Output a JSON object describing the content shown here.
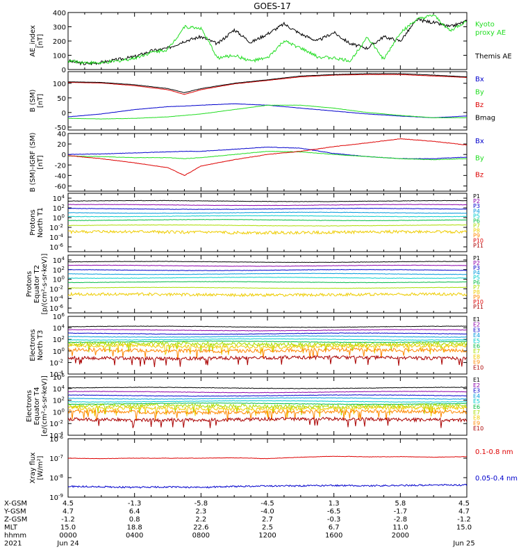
{
  "title": "GOES-17",
  "colors": {
    "black": "#000000",
    "red": "#dd0000",
    "green": "#22dd22",
    "blue": "#0000cc",
    "bright_green": "#00ee00"
  },
  "chart_data": [
    {
      "type": "line",
      "id": "ae",
      "ylabel": [
        "AE_index",
        "[nT]"
      ],
      "ylim": [
        0,
        400
      ],
      "yticks": [
        0,
        100,
        200,
        300,
        400
      ],
      "x_hours": [
        0,
        1,
        2,
        3,
        4,
        5,
        6,
        7,
        8,
        9,
        10,
        11,
        12,
        13,
        14,
        15,
        16,
        17,
        18,
        19,
        20,
        21,
        22,
        23,
        24
      ],
      "series": [
        {
          "name": "Themis AE",
          "color": "#000000",
          "values": [
            60,
            40,
            50,
            70,
            90,
            130,
            150,
            200,
            230,
            180,
            280,
            190,
            250,
            320,
            250,
            200,
            260,
            180,
            150,
            230,
            200,
            350,
            330,
            300,
            340
          ]
        },
        {
          "name": "Kyoto proxy AE",
          "color": "#22dd22",
          "values": [
            60,
            50,
            45,
            60,
            80,
            120,
            140,
            300,
            290,
            80,
            100,
            60,
            80,
            200,
            150,
            90,
            80,
            60,
            230,
            70,
            260,
            350,
            380,
            270,
            340
          ]
        }
      ],
      "legend": [
        {
          "text": "Kyoto",
          "color": "#22dd22"
        },
        {
          "text": "proxy AE",
          "color": "#22dd22"
        },
        {
          "text": "Themis AE",
          "color": "#000000"
        }
      ]
    },
    {
      "type": "line",
      "id": "bsm",
      "ylabel": [
        "B (SM)",
        "[nT]"
      ],
      "ylim": [
        -60,
        140
      ],
      "yticks": [
        -50,
        0,
        50,
        100
      ],
      "x_hours": [
        0,
        2,
        4,
        6,
        7,
        8,
        10,
        12,
        14,
        16,
        18,
        20,
        22,
        24
      ],
      "series": [
        {
          "name": "Bx",
          "color": "#0000cc",
          "values": [
            -15,
            -5,
            10,
            20,
            22,
            25,
            30,
            25,
            15,
            5,
            -5,
            -12,
            -18,
            -12
          ]
        },
        {
          "name": "By",
          "color": "#22dd22",
          "values": [
            -20,
            -22,
            -20,
            -15,
            -10,
            -5,
            10,
            25,
            25,
            15,
            0,
            -10,
            -18,
            -18
          ]
        },
        {
          "name": "Bz",
          "color": "#dd0000",
          "values": [
            103,
            101,
            92,
            78,
            62,
            78,
            98,
            110,
            122,
            128,
            130,
            130,
            125,
            120
          ]
        },
        {
          "name": "Bmag",
          "color": "#000000",
          "values": [
            105,
            103,
            95,
            82,
            68,
            82,
            100,
            112,
            125,
            130,
            133,
            133,
            128,
            122
          ]
        }
      ],
      "legend": [
        {
          "text": "Bx",
          "color": "#0000cc"
        },
        {
          "text": "By",
          "color": "#22dd22"
        },
        {
          "text": "Bz",
          "color": "#dd0000"
        },
        {
          "text": "Bmag",
          "color": "#000000"
        }
      ]
    },
    {
      "type": "line",
      "id": "bigrf",
      "ylabel": [
        "B (SM)-IGRF (SM)",
        "[nT]"
      ],
      "ylim": [
        -70,
        40
      ],
      "yticks": [
        -60,
        -40,
        -20,
        0,
        20,
        40
      ],
      "x_hours": [
        0,
        2,
        4,
        6,
        7,
        8,
        10,
        12,
        14,
        16,
        18,
        20,
        22,
        24
      ],
      "series": [
        {
          "name": "Bx",
          "color": "#0000cc",
          "values": [
            0,
            1,
            3,
            5,
            6,
            6,
            10,
            14,
            12,
            2,
            -4,
            -8,
            -8,
            -5
          ]
        },
        {
          "name": "By",
          "color": "#22dd22",
          "values": [
            -3,
            -4,
            -6,
            -6,
            -8,
            -6,
            0,
            6,
            5,
            0,
            -4,
            -8,
            -10,
            -8
          ]
        },
        {
          "name": "Bz",
          "color": "#dd0000",
          "values": [
            -2,
            -8,
            -16,
            -25,
            -40,
            -22,
            -10,
            0,
            6,
            15,
            22,
            30,
            25,
            18
          ]
        }
      ],
      "legend": [
        {
          "text": "Bx",
          "color": "#0000cc"
        },
        {
          "text": "By",
          "color": "#22dd22"
        },
        {
          "text": "Bz",
          "color": "#dd0000"
        }
      ]
    },
    {
      "type": "line",
      "id": "pn",
      "yscale": "log",
      "ylabel": [
        "Protons",
        "North T1"
      ],
      "ylim_exp": [
        -7,
        5
      ],
      "yticks": [
        "10^4",
        "10^2",
        "10^0",
        "10^-2",
        "10^-4",
        "10^-6"
      ],
      "channels": [
        {
          "name": "P1",
          "color": "#000000",
          "log": 3.4
        },
        {
          "name": "P2",
          "color": "#8b00aa",
          "log": 2.6
        },
        {
          "name": "P3",
          "color": "#0000cc",
          "log": 1.8
        },
        {
          "name": "P4",
          "color": "#0099dd",
          "log": 1.0
        },
        {
          "name": "P5",
          "color": "#00cccc",
          "log": 0.3
        },
        {
          "name": "P6",
          "color": "#00bb44",
          "log": -0.5
        },
        {
          "name": "P7",
          "color": "#aadd00",
          "log": -1.6
        },
        {
          "name": "P8",
          "color": "#eecc00",
          "log": -3.0
        },
        {
          "name": "P9",
          "color": "#ff8800",
          "log": -99
        },
        {
          "name": "P10",
          "color": "#dd0000",
          "log": -99
        },
        {
          "name": "P11",
          "color": "#aa0000",
          "log": -99
        }
      ]
    },
    {
      "type": "line",
      "id": "pe",
      "yscale": "log",
      "ylabel": [
        "Protons",
        "Equator T2",
        "[p/(cm²-s-sr-keV)]"
      ],
      "ylim_exp": [
        -7,
        5
      ],
      "yticks": [
        "10^4",
        "10^2",
        "10^0",
        "10^-2",
        "10^-4",
        "10^-6"
      ],
      "channels": [
        {
          "name": "P1",
          "color": "#000000",
          "log": 3.6
        },
        {
          "name": "P2",
          "color": "#8b00aa",
          "log": 2.8
        },
        {
          "name": "P3",
          "color": "#0000cc",
          "log": 1.9
        },
        {
          "name": "P4",
          "color": "#0099dd",
          "log": 1.1
        },
        {
          "name": "P5",
          "color": "#00cccc",
          "log": 0.3
        },
        {
          "name": "P6",
          "color": "#00bb44",
          "log": -0.6
        },
        {
          "name": "P7",
          "color": "#aadd00",
          "log": -1.8
        },
        {
          "name": "P8",
          "color": "#eecc00",
          "log": -3.2
        },
        {
          "name": "P9",
          "color": "#ff8800",
          "log": -99
        },
        {
          "name": "P10",
          "color": "#dd0000",
          "log": -99
        },
        {
          "name": "P11",
          "color": "#aa0000",
          "log": -99
        }
      ]
    },
    {
      "type": "line",
      "id": "en",
      "yscale": "log",
      "ylabel": [
        "Electrons",
        "North T3"
      ],
      "ylim_exp": [
        -4,
        6
      ],
      "yticks": [
        "10^6",
        "10^4",
        "10^2",
        "10^0",
        "10^-2",
        "10^-4"
      ],
      "channels": [
        {
          "name": "E1",
          "color": "#000000",
          "log": 4.2
        },
        {
          "name": "E2",
          "color": "#8b00aa",
          "log": 3.6
        },
        {
          "name": "E3",
          "color": "#0000cc",
          "log": 3.0
        },
        {
          "name": "E4",
          "color": "#0099dd",
          "log": 2.5
        },
        {
          "name": "E5",
          "color": "#00cccc",
          "log": 2.0
        },
        {
          "name": "E6",
          "color": "#00bb44",
          "log": 1.6
        },
        {
          "name": "E7",
          "color": "#aadd00",
          "log": 1.2
        },
        {
          "name": "E8",
          "color": "#eecc00",
          "log": 0.8
        },
        {
          "name": "E9",
          "color": "#ff8800",
          "log": 0.1
        },
        {
          "name": "E10",
          "color": "#aa0000",
          "log": -1.2
        }
      ]
    },
    {
      "type": "line",
      "id": "ee",
      "yscale": "log",
      "ylabel": [
        "Electrons",
        "Equator T4",
        "[e/(cm²-s-sr-keV)]"
      ],
      "ylim_exp": [
        -4,
        6
      ],
      "yticks": [
        "10^6",
        "10^4",
        "10^2",
        "10^0",
        "10^-2",
        "10^-4"
      ],
      "channels": [
        {
          "name": "E1",
          "color": "#000000",
          "log": 4.1
        },
        {
          "name": "E2",
          "color": "#8b00aa",
          "log": 3.4
        },
        {
          "name": "E3",
          "color": "#0000cc",
          "log": 2.8
        },
        {
          "name": "E4",
          "color": "#0099dd",
          "log": 2.3
        },
        {
          "name": "E5",
          "color": "#00cccc",
          "log": 1.8
        },
        {
          "name": "E6",
          "color": "#00bb44",
          "log": 1.4
        },
        {
          "name": "E7",
          "color": "#aadd00",
          "log": 1.0
        },
        {
          "name": "E8",
          "color": "#eecc00",
          "log": 0.6
        },
        {
          "name": "E9",
          "color": "#ff8800",
          "log": 0.0
        },
        {
          "name": "E10",
          "color": "#aa0000",
          "log": -1.3
        }
      ]
    },
    {
      "type": "line",
      "id": "xray",
      "yscale": "log",
      "ylabel": [
        "Xray flux",
        "[W/m²]"
      ],
      "ylim_exp": [
        -9,
        -6
      ],
      "yticks": [
        "10^-6",
        "10^-7",
        "10^-8",
        "10^-9"
      ],
      "series": [
        {
          "name": "0.1-0.8 nm",
          "color": "#dd0000",
          "log_values": [
            -7.0,
            -7.02,
            -7.0,
            -7.0,
            -7.0,
            -6.98,
            -7.02,
            -6.95,
            -6.9,
            -6.93,
            -6.92,
            -6.95,
            -6.92
          ]
        },
        {
          "name": "0.05-0.4 nm",
          "color": "#0000cc",
          "log_values": [
            -8.45,
            -8.47,
            -8.5,
            -8.48,
            -8.5,
            -8.45,
            -8.43,
            -8.42,
            -8.4,
            -8.42,
            -8.4,
            -8.38,
            -8.38
          ]
        }
      ],
      "legend": [
        {
          "text": "0.1-0.8 nm",
          "color": "#dd0000"
        },
        {
          "text": "0.05-0.4 nm",
          "color": "#0000cc"
        }
      ]
    }
  ],
  "footer": {
    "rows": [
      {
        "label": "X-GSM",
        "values": [
          "4.5",
          "-1.3",
          "-5.8",
          "-4.5",
          "1.3",
          "5.8",
          "4.5"
        ]
      },
      {
        "label": "Y-GSM",
        "values": [
          "4.7",
          "6.4",
          "2.3",
          "-4.0",
          "-6.5",
          "-1.7",
          "4.7"
        ]
      },
      {
        "label": "Z-GSM",
        "values": [
          "-1.2",
          "0.8",
          "2.2",
          "2.7",
          "-0.3",
          "-2.8",
          "-1.2"
        ]
      },
      {
        "label": "MLT",
        "values": [
          "15.0",
          "18.8",
          "22.6",
          "2.5",
          "6.7",
          "11.0",
          "15.0"
        ]
      },
      {
        "label": "hhmm",
        "values": [
          "0000",
          "0400",
          "0800",
          "1200",
          "1600",
          "2000",
          ""
        ]
      },
      {
        "label": "2021",
        "values": [
          "Jun 24",
          "",
          "",
          "",
          "",
          "",
          "Jun 25"
        ]
      }
    ]
  }
}
